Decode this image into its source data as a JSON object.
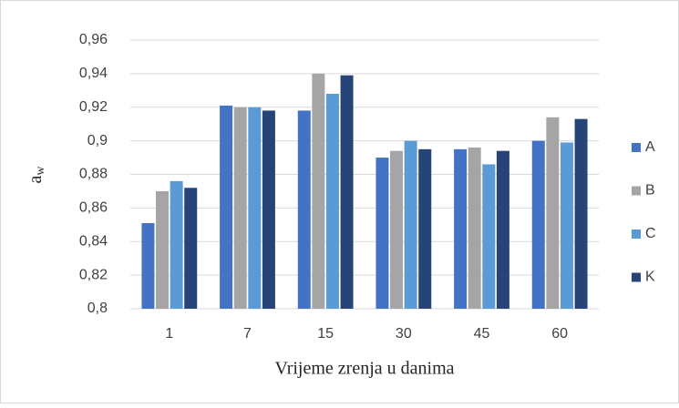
{
  "chart_data": {
    "type": "bar",
    "x_label": "Vrijeme zrenja u danima",
    "y_label": "a",
    "y_label_subscript": "w",
    "categories": [
      "1",
      "7",
      "15",
      "30",
      "45",
      "60"
    ],
    "series": [
      {
        "name": "A",
        "color": "#4472c4",
        "values": [
          0.851,
          0.921,
          0.918,
          0.89,
          0.895,
          0.9
        ]
      },
      {
        "name": "B",
        "color": "#a5a5a5",
        "values": [
          0.87,
          0.92,
          0.94,
          0.894,
          0.896,
          0.914
        ]
      },
      {
        "name": "C",
        "color": "#5b9bd5",
        "values": [
          0.876,
          0.92,
          0.928,
          0.9,
          0.886,
          0.899
        ]
      },
      {
        "name": "K",
        "color": "#264478",
        "values": [
          0.872,
          0.918,
          0.939,
          0.895,
          0.894,
          0.913
        ]
      }
    ],
    "ylim": [
      0.8,
      0.96
    ],
    "yticks": [
      {
        "value": 0.8,
        "label": "0,8"
      },
      {
        "value": 0.82,
        "label": "0,82"
      },
      {
        "value": 0.84,
        "label": "0,84"
      },
      {
        "value": 0.86,
        "label": "0,86"
      },
      {
        "value": 0.88,
        "label": "0,88"
      },
      {
        "value": 0.9,
        "label": "0,9"
      },
      {
        "value": 0.92,
        "label": "0,92"
      },
      {
        "value": 0.94,
        "label": "0,94"
      },
      {
        "value": 0.96,
        "label": "0,96"
      }
    ],
    "grid": true,
    "legend": "right"
  }
}
